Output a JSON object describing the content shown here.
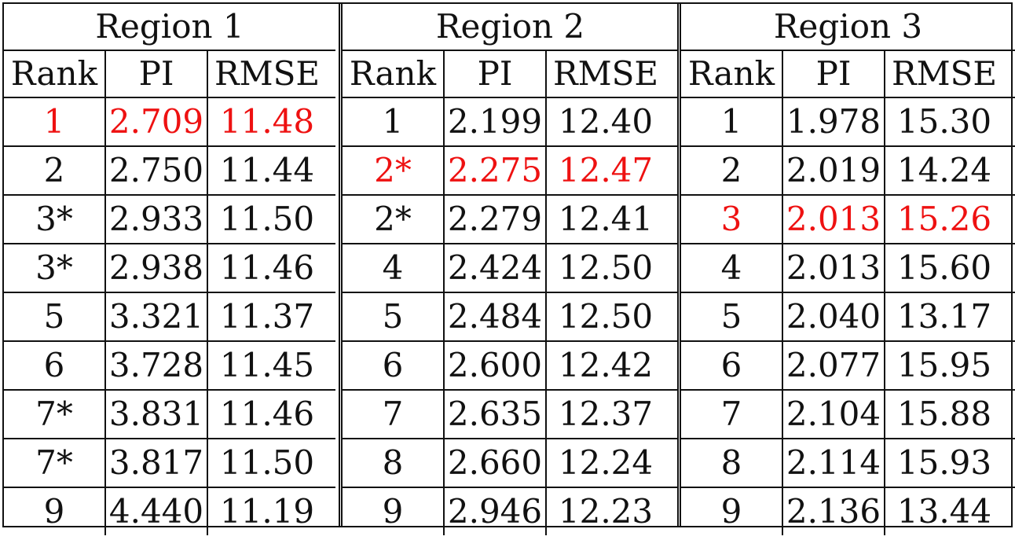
{
  "columns": [
    "Rank",
    "PI",
    "RMSE"
  ],
  "highlight_color": "#ee1111",
  "regions": [
    {
      "title": "Region 1",
      "rows": [
        {
          "rank": "1",
          "pi": "2.709",
          "rmse": "11.48",
          "highlight": true
        },
        {
          "rank": "2",
          "pi": "2.750",
          "rmse": "11.44",
          "highlight": false
        },
        {
          "rank": "3*",
          "pi": "2.933",
          "rmse": "11.50",
          "highlight": false
        },
        {
          "rank": "3*",
          "pi": "2.938",
          "rmse": "11.46",
          "highlight": false
        },
        {
          "rank": "5",
          "pi": "3.321",
          "rmse": "11.37",
          "highlight": false
        },
        {
          "rank": "6",
          "pi": "3.728",
          "rmse": "11.45",
          "highlight": false
        },
        {
          "rank": "7*",
          "pi": "3.831",
          "rmse": "11.46",
          "highlight": false
        },
        {
          "rank": "7*",
          "pi": "3.817",
          "rmse": "11.50",
          "highlight": false
        },
        {
          "rank": "9",
          "pi": "4.440",
          "rmse": "11.19",
          "highlight": false
        }
      ]
    },
    {
      "title": "Region 2",
      "rows": [
        {
          "rank": "1",
          "pi": "2.199",
          "rmse": "12.40",
          "highlight": false
        },
        {
          "rank": "2*",
          "pi": "2.275",
          "rmse": "12.47",
          "highlight": true
        },
        {
          "rank": "2*",
          "pi": "2.279",
          "rmse": "12.41",
          "highlight": false
        },
        {
          "rank": "4",
          "pi": "2.424",
          "rmse": "12.50",
          "highlight": false
        },
        {
          "rank": "5",
          "pi": "2.484",
          "rmse": "12.50",
          "highlight": false
        },
        {
          "rank": "6",
          "pi": "2.600",
          "rmse": "12.42",
          "highlight": false
        },
        {
          "rank": "7",
          "pi": "2.635",
          "rmse": "12.37",
          "highlight": false
        },
        {
          "rank": "8",
          "pi": "2.660",
          "rmse": "12.24",
          "highlight": false
        },
        {
          "rank": "9",
          "pi": "2.946",
          "rmse": "12.23",
          "highlight": false
        }
      ]
    },
    {
      "title": "Region 3",
      "rows": [
        {
          "rank": "1",
          "pi": "1.978",
          "rmse": "15.30",
          "highlight": false
        },
        {
          "rank": "2",
          "pi": "2.019",
          "rmse": "14.24",
          "highlight": false
        },
        {
          "rank": "3",
          "pi": "2.013",
          "rmse": "15.26",
          "highlight": true
        },
        {
          "rank": "4",
          "pi": "2.013",
          "rmse": "15.60",
          "highlight": false
        },
        {
          "rank": "5",
          "pi": "2.040",
          "rmse": "13.17",
          "highlight": false
        },
        {
          "rank": "6",
          "pi": "2.077",
          "rmse": "15.95",
          "highlight": false
        },
        {
          "rank": "7",
          "pi": "2.104",
          "rmse": "15.88",
          "highlight": false
        },
        {
          "rank": "8",
          "pi": "2.114",
          "rmse": "15.93",
          "highlight": false
        },
        {
          "rank": "9",
          "pi": "2.136",
          "rmse": "13.44",
          "highlight": false
        }
      ]
    }
  ]
}
